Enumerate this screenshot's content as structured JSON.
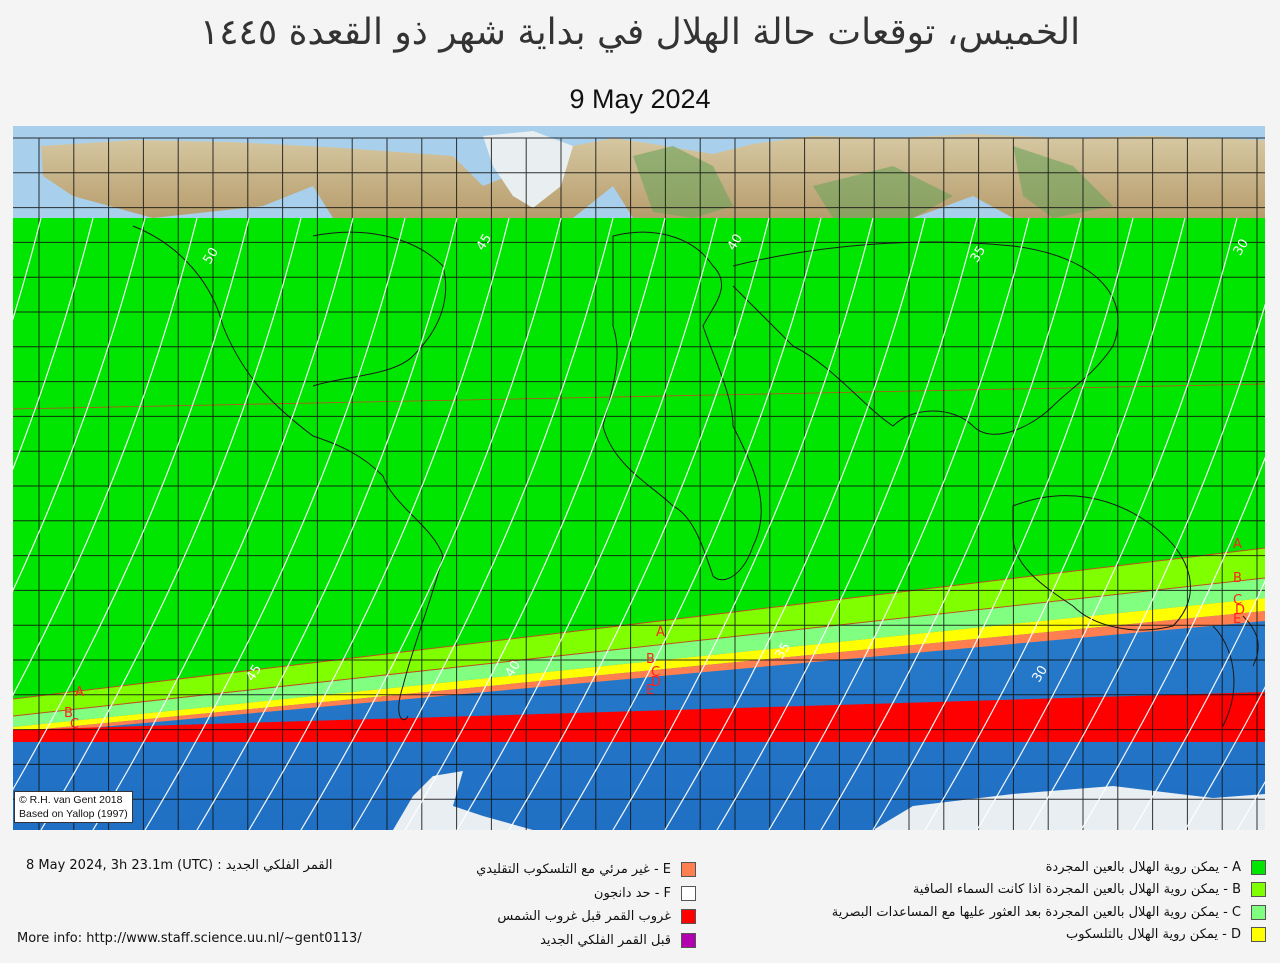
{
  "header": {
    "title": "الخميس، توقعات حالة الهلال في بداية شهر ذو القعدة ١٤٤٥",
    "date": "9 May 2024"
  },
  "map": {
    "credit_line1": "© R.H. van Gent 2018",
    "credit_line2": "Based on Yallop (1997)",
    "contour_labels": [
      "50",
      "45",
      "40",
      "35",
      "30",
      "45",
      "40",
      "35",
      "30"
    ],
    "zone_markers": [
      "A",
      "B",
      "C",
      "D",
      "E"
    ],
    "colors": {
      "zone_A": "#00e600",
      "zone_B": "#80ff00",
      "zone_C": "#80ff80",
      "zone_D": "#ffff00",
      "zone_E": "#ff7f50",
      "zone_F": "#ffffff",
      "moonset_before_sunset": "#ff0000",
      "before_new_moon": "#b000b0",
      "ocean": "#2a7fd0",
      "land": "#c8b48a"
    }
  },
  "footer": {
    "new_moon_label": "القمر الفلكي الجديد :",
    "new_moon_value": "8 May 2024, 3h 23.1m (UTC)",
    "more_info": "More info: http://www.staff.science.uu.nl/~gent0113/"
  },
  "legend": {
    "middle": [
      {
        "label": "E - غير مرئي مع التلسكوب التقليدي",
        "color": "#ff7f50"
      },
      {
        "label": "F - حد دانجون",
        "color": "#ffffff"
      },
      {
        "label": "غروب القمر قبل غروب الشمس",
        "color": "#ff0000"
      },
      {
        "label": "قبل القمر  الفلكي الجديد",
        "color": "#b000b0"
      }
    ],
    "right": [
      {
        "label": "A - يمكن روية الهلال بالعين المجردة",
        "color": "#00e600"
      },
      {
        "label": "B - يمكن روية الهلال بالعين المجردة اذا كانت السماء الصافية",
        "color": "#80ff00"
      },
      {
        "label": "C - يمكن روية الهلال بالعين المجردة بعد العثور عليها مع المساعدات البصرية",
        "color": "#80ff80"
      },
      {
        "label": "D - يمكن روية الهلال بالتلسكوب",
        "color": "#ffff00"
      }
    ]
  },
  "chart_data": {
    "type": "map",
    "title": "الخميس، توقعات حالة الهلال في بداية شهر ذو القعدة ١٤٤٥",
    "subtitle": "9 May 2024",
    "new_moon": "8 May 2024, 3h 23.1m (UTC)",
    "projection": "equirectangular world map, 180W to 180E",
    "zones": [
      {
        "zone": "A",
        "description": "naked-eye visible",
        "coverage": "from ~60N down to curve ~40S (west) rising to ~20S (east)"
      },
      {
        "zone": "B",
        "description": "visible in perfect conditions",
        "coverage": "thin band south of A"
      },
      {
        "zone": "C",
        "description": "optical aid needed",
        "coverage": "thin band south of B"
      },
      {
        "zone": "D",
        "description": "telescope only",
        "coverage": "thin band south of C"
      },
      {
        "zone": "E",
        "description": "not visible with telescope",
        "coverage": "thin band south of D"
      },
      {
        "zone": "moonset_before_sunset",
        "coverage": "band ~50S-55S (west) to ~45S-50S (east)"
      }
    ],
    "contour_labels": [
      50,
      45,
      40,
      35,
      30,
      45,
      40,
      35,
      30
    ]
  }
}
